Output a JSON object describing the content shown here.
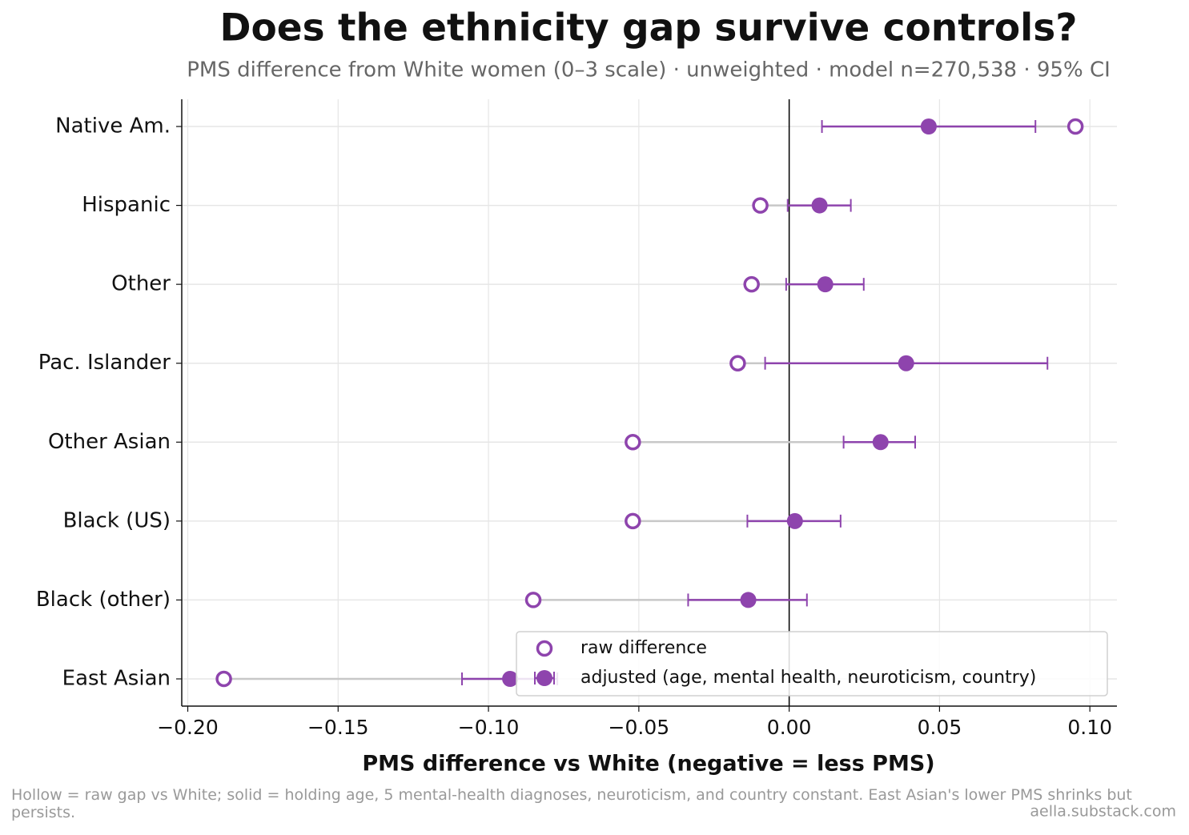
{
  "chart_data": {
    "type": "dotplot",
    "title": "Does the ethnicity gap survive controls?",
    "subtitle": "PMS difference from White women (0–3 scale) · unweighted · model n=270,538 · 95% CI",
    "x_label": "PMS difference vs White (negative = less PMS)",
    "footnote": "Hollow = raw gap vs White; solid = holding age, 5 mental-health diagnoses, neuroticism, and country constant. East Asian's lower PMS shrinks but persists.",
    "source": "aella.substack.com",
    "categories": [
      "Native Am.",
      "Hispanic",
      "Other",
      "Pac. Islander",
      "Other Asian",
      "Black (US)",
      "Black (other)",
      "East Asian"
    ],
    "series": [
      {
        "name": "raw difference",
        "color": "#8e44ad",
        "style": "hollow",
        "values": [
          0.0952,
          -0.0096,
          -0.0125,
          -0.0171,
          -0.052,
          -0.052,
          -0.0851,
          -0.188
        ]
      },
      {
        "name": "adjusted (age, mental health, neuroticism, country)",
        "color": "#8e44ad",
        "style": "solid",
        "values": [
          0.0464,
          0.0101,
          0.012,
          0.0389,
          0.0304,
          0.0019,
          -0.0136,
          -0.0928
        ],
        "ci_low": [
          0.0109,
          -0.0005,
          -0.001,
          -0.008,
          0.0181,
          -0.0139,
          -0.0336,
          -0.1088
        ],
        "ci_high": [
          0.0819,
          0.0205,
          0.0248,
          0.0859,
          0.0419,
          0.0171,
          0.0059,
          -0.0771
        ]
      }
    ],
    "xlim": [
      -0.202,
      0.109
    ],
    "xticks": [
      {
        "value": -0.2,
        "label": "−0.20"
      },
      {
        "value": -0.15,
        "label": "−0.15"
      },
      {
        "value": -0.1,
        "label": "−0.10"
      },
      {
        "value": -0.05,
        "label": "−0.05"
      },
      {
        "value": 0,
        "label": "0.00"
      },
      {
        "value": 0.05,
        "label": "0.05"
      },
      {
        "value": 0.1,
        "label": "0.10"
      }
    ],
    "grid": true,
    "legend": "lower right"
  }
}
